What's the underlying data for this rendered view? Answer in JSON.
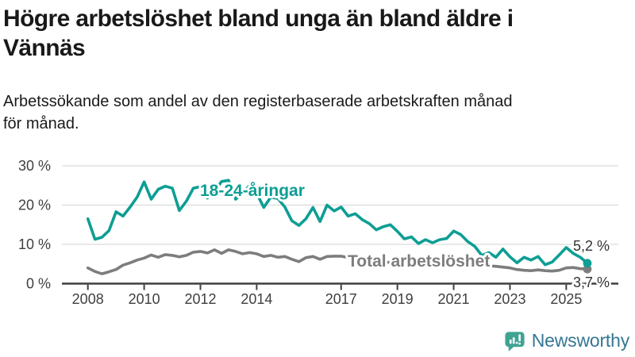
{
  "title": {
    "line1": "Högre arbetslöshet bland unga än bland äldre i",
    "line2": "Vännäs"
  },
  "subtitle": {
    "line1": "Arbetssökande som andel av den registerbaserade arbetskraften månad",
    "line2": "för månad."
  },
  "footer": {
    "brand": "Newsworthy",
    "logo_icon": "bar-chart-speech-bubble-icon"
  },
  "colors": {
    "youth_line": "#0d9e94",
    "total_line": "#7d7d7d",
    "grid": "#dcdcdc",
    "axis": "#3f3f3f",
    "end_label_text": "#333333",
    "brand_icon": "#3fa392",
    "brand_text": "#357795"
  },
  "chart_data": {
    "type": "line",
    "x_unit": "year (quarterly points)",
    "x_start": 2008.0,
    "x_step": 0.25,
    "x_tick_years": [
      2008,
      2010,
      2012,
      2014,
      2017,
      2019,
      2021,
      2023,
      2025
    ],
    "x_tick_labels": [
      "2008",
      "2010",
      "2012",
      "2014",
      "2017",
      "2019",
      "2021",
      "2023",
      "2025"
    ],
    "y_ticks": [
      {
        "value": 0,
        "label": "0 %"
      },
      {
        "value": 10,
        "label": "10 %"
      },
      {
        "value": 20,
        "label": "20 %"
      },
      {
        "value": 30,
        "label": "30 %"
      }
    ],
    "ylim": [
      0,
      30
    ],
    "grid": "horizontal",
    "legend_position": "inline-labels",
    "series": [
      {
        "id": "total",
        "label": "Total arbetslöshet",
        "end_label": "3,7 %",
        "end_value": 3.7,
        "values": [
          4.0,
          3.1,
          2.5,
          3.0,
          3.6,
          4.7,
          5.3,
          6.0,
          6.5,
          7.3,
          6.7,
          7.4,
          7.2,
          6.8,
          7.2,
          8.0,
          8.2,
          7.8,
          8.6,
          7.7,
          8.6,
          8.2,
          7.6,
          7.9,
          7.6,
          6.9,
          7.2,
          6.7,
          6.9,
          6.2,
          5.6,
          6.6,
          6.9,
          6.2,
          6.9,
          7.0,
          7.0,
          6.6,
          6.4,
          6.2,
          5.9,
          5.6,
          5.5,
          5.4,
          5.3,
          5.1,
          5.0,
          4.9,
          5.0,
          5.6,
          5.8,
          5.6,
          5.4,
          5.2,
          4.9,
          4.7,
          4.6,
          4.5,
          4.4,
          4.2,
          4.0,
          3.6,
          3.4,
          3.3,
          3.5,
          3.3,
          3.2,
          3.4,
          4.0,
          4.1,
          3.8,
          3.7
        ]
      },
      {
        "id": "youth",
        "label": "18-24-åringar",
        "end_label": "5,2 %",
        "end_value": 5.2,
        "values": [
          16.5,
          11.3,
          11.8,
          13.5,
          18.3,
          17.2,
          19.5,
          22.0,
          25.9,
          21.5,
          24.0,
          24.8,
          24.3,
          18.6,
          21.0,
          24.3,
          24.7,
          21.8,
          23.5,
          26.0,
          26.3,
          21.5,
          23.0,
          25.0,
          23.0,
          19.4,
          22.0,
          21.7,
          19.5,
          16.0,
          14.8,
          16.5,
          19.4,
          15.8,
          20.0,
          18.5,
          19.5,
          17.2,
          17.8,
          16.3,
          15.3,
          13.7,
          14.5,
          15.0,
          13.3,
          11.4,
          11.9,
          10.2,
          11.2,
          10.4,
          11.2,
          11.5,
          13.4,
          12.5,
          10.7,
          9.5,
          7.2,
          7.9,
          6.7,
          8.8,
          6.8,
          5.3,
          6.7,
          6.0,
          6.9,
          4.8,
          5.5,
          7.3,
          9.2,
          7.7,
          6.7,
          5.2
        ]
      }
    ]
  }
}
